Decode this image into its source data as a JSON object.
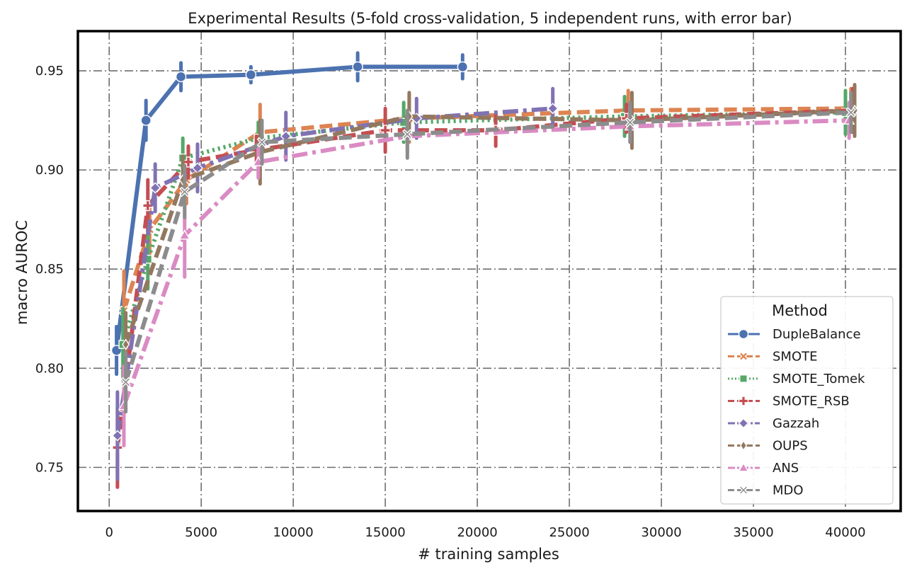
{
  "chart_data": {
    "type": "line",
    "title": "Experimental Results (5-fold cross-validation, 5 independent runs, with error bar)",
    "xlabel": "# training samples",
    "ylabel": "macro AUROC",
    "xlim": [
      -1700,
      43000
    ],
    "ylim": [
      0.728,
      0.97
    ],
    "xticks": [
      0,
      5000,
      10000,
      15000,
      20000,
      25000,
      30000,
      35000,
      40000
    ],
    "xtick_labels": [
      "0",
      "5000",
      "10000",
      "15000",
      "20000",
      "25000",
      "30000",
      "35000",
      "40000"
    ],
    "yticks": [
      0.75,
      0.8,
      0.85,
      0.9,
      0.95
    ],
    "ytick_labels": [
      "0.75",
      "0.80",
      "0.85",
      "0.90",
      "0.95"
    ],
    "grid": true,
    "legend": {
      "title": "Method",
      "placement": "lower-right"
    },
    "series": [
      {
        "name": "DupleBalance",
        "color": "#4c72b0",
        "dash": "solid",
        "marker": "circle",
        "x": [
          400,
          2000,
          3900,
          7700,
          13500,
          19200
        ],
        "y": [
          0.809,
          0.925,
          0.947,
          0.948,
          0.952,
          0.952
        ],
        "err": [
          0.012,
          0.01,
          0.007,
          0.004,
          0.007,
          0.006
        ]
      },
      {
        "name": "SMOTE",
        "color": "#dd8452",
        "dash": "dashed",
        "marker": "x",
        "x": [
          800,
          2200,
          4200,
          8200,
          16300,
          28200,
          40300
        ],
        "y": [
          0.829,
          0.87,
          0.895,
          0.919,
          0.926,
          0.93,
          0.931
        ],
        "err": [
          0.02,
          0.014,
          0.012,
          0.014,
          0.012,
          0.01,
          0.01
        ]
      },
      {
        "name": "SMOTE_Tomek",
        "color": "#55a868",
        "dash": "dotted",
        "marker": "square",
        "x": [
          750,
          2100,
          4000,
          8100,
          16000,
          28000,
          40000
        ],
        "y": [
          0.812,
          0.855,
          0.906,
          0.916,
          0.924,
          0.927,
          0.929
        ],
        "err": [
          0.018,
          0.015,
          0.01,
          0.008,
          0.01,
          0.01,
          0.011
        ]
      },
      {
        "name": "SMOTE_RSB",
        "color": "#c44e52",
        "dash": "dashed",
        "marker": "plus",
        "x": [
          450,
          2100,
          4300,
          8000,
          15000,
          21000,
          28100,
          40400
        ],
        "y": [
          0.76,
          0.882,
          0.904,
          0.91,
          0.92,
          0.92,
          0.926,
          0.93
        ],
        "err": [
          0.02,
          0.013,
          0.008,
          0.007,
          0.011,
          0.008,
          0.007,
          0.011
        ]
      },
      {
        "name": "Gazzah",
        "color": "#8172b3",
        "dash": "dashdot",
        "marker": "diamond",
        "x": [
          450,
          2500,
          4800,
          9600,
          16700,
          24100
        ],
        "y": [
          0.766,
          0.891,
          0.901,
          0.917,
          0.926,
          0.931
        ],
        "err": [
          0.022,
          0.012,
          0.012,
          0.012,
          0.01,
          0.01
        ]
      },
      {
        "name": "OUPS",
        "color": "#937860",
        "dash": "dashed",
        "marker": "thin-diamond",
        "x": [
          900,
          4000,
          8200,
          16300,
          28400,
          40500
        ],
        "y": [
          0.812,
          0.895,
          0.909,
          0.927,
          0.925,
          0.93
        ],
        "err": [
          0.016,
          0.012,
          0.016,
          0.012,
          0.014,
          0.013
        ]
      },
      {
        "name": "ANS",
        "color": "#da8bc3",
        "dash": "dashdot",
        "marker": "triangle",
        "x": [
          800,
          4100,
          8100,
          16200,
          28300,
          40200
        ],
        "y": [
          0.781,
          0.867,
          0.904,
          0.917,
          0.922,
          0.925
        ],
        "err": [
          0.02,
          0.021,
          0.008,
          0.008,
          0.008,
          0.009
        ]
      },
      {
        "name": "MDO",
        "color": "#8c8c8c",
        "dash": "dashed",
        "marker": "x-thin",
        "x": [
          900,
          4100,
          8300,
          16200,
          28300,
          40300
        ],
        "y": [
          0.793,
          0.889,
          0.914,
          0.918,
          0.924,
          0.929
        ],
        "err": [
          0.015,
          0.013,
          0.011,
          0.012,
          0.01,
          0.01
        ]
      }
    ]
  }
}
